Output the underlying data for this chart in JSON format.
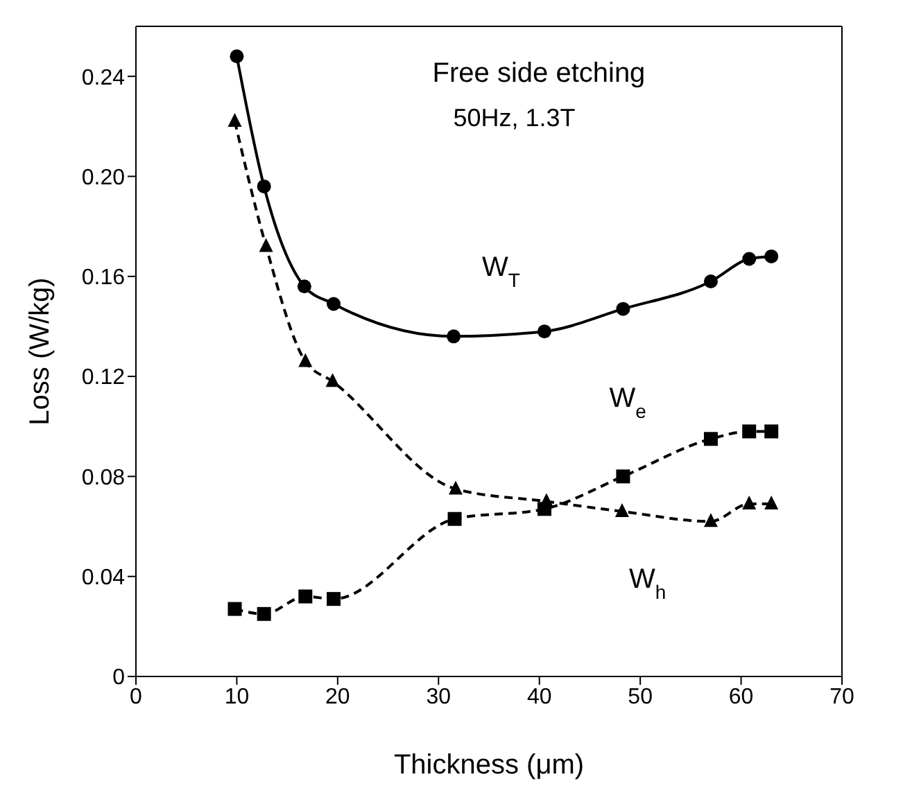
{
  "chart_data": {
    "type": "line",
    "xlabel": "Thickness (μm)",
    "ylabel": "Loss (W/kg)",
    "xlim": [
      0,
      70
    ],
    "xticks": [
      0,
      10,
      20,
      30,
      40,
      50,
      60,
      70
    ],
    "ylim": [
      0,
      0.26
    ],
    "yticks": [
      0,
      0.04,
      0.08,
      0.12,
      0.16,
      {
        "value": 0.2,
        "label": "0.20"
      },
      0.24
    ],
    "annotations": [
      "Free side etching",
      "50Hz, 1.3T"
    ],
    "series": [
      {
        "name": "W$_{T}$",
        "color": "#000000",
        "marker": "circle",
        "line_style": "solid",
        "x": [
          10,
          12.7,
          16.7,
          19.6,
          31.5,
          40.5,
          48.3,
          57,
          60.8,
          63
        ],
        "values": [
          0.248,
          0.196,
          0.156,
          0.149,
          0.136,
          0.138,
          0.147,
          0.158,
          0.167,
          0.168
        ]
      },
      {
        "name": "W$_{e}$",
        "color": "#000000",
        "marker": "square",
        "line_style": "dashed",
        "x": [
          9.8,
          12.7,
          16.8,
          19.6,
          31.6,
          40.5,
          48.3,
          57,
          60.8,
          63
        ],
        "values": [
          0.027,
          0.025,
          0.032,
          0.031,
          0.063,
          0.067,
          0.08,
          0.095,
          0.098,
          0.098
        ]
      },
      {
        "name": "W$_{h}$",
        "color": "#000000",
        "marker": "triangle",
        "line_style": "dashed",
        "x": [
          9.8,
          12.9,
          16.8,
          19.5,
          31.7,
          40.7,
          48.2,
          57,
          60.8,
          63
        ],
        "values": [
          0.222,
          0.172,
          0.126,
          0.118,
          0.075,
          0.07,
          0.066,
          0.062,
          0.069,
          0.069
        ]
      }
    ]
  }
}
